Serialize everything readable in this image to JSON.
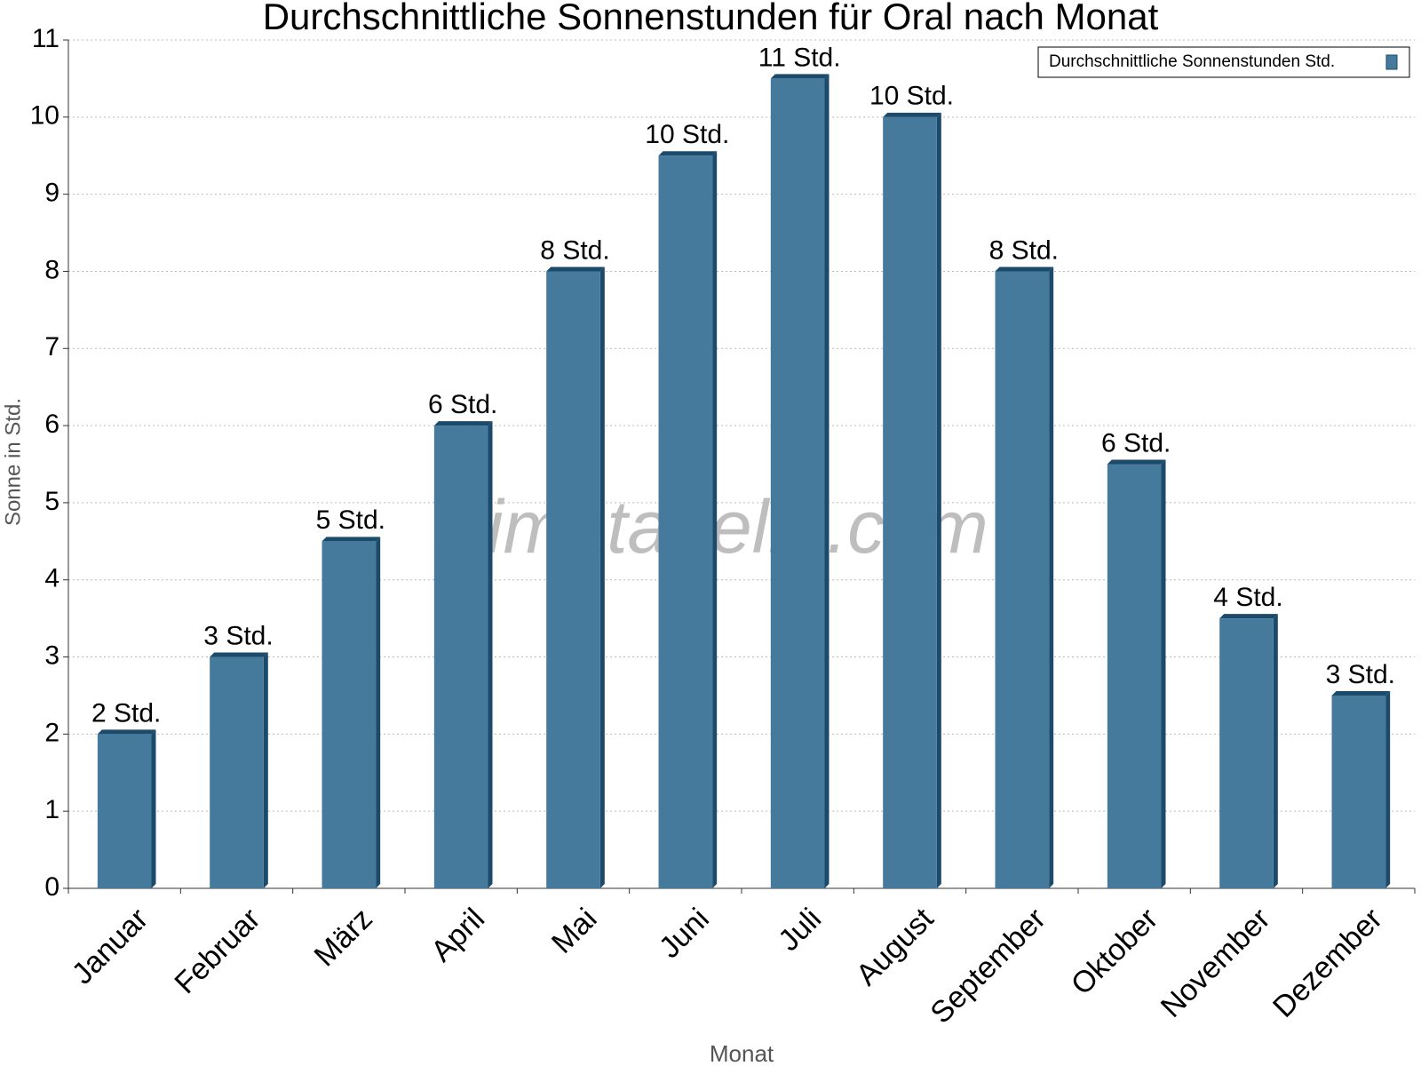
{
  "chart_data": {
    "type": "bar",
    "title": "Durchschnittliche Sonnenstunden für Oral nach Monat",
    "watermark": "klimatabelle.com",
    "x_label": "Monat",
    "y_label": "Sonne in Std.",
    "categories": [
      "Januar",
      "Februar",
      "März",
      "April",
      "Mai",
      "Juni",
      "Juli",
      "August",
      "September",
      "Oktober",
      "November",
      "Dezember"
    ],
    "series": [
      {
        "name": "Durchschnittliche Sonnenstunden Std.",
        "color": "#457a9c",
        "values": [
          2,
          3,
          4.5,
          6,
          8,
          9.5,
          10.5,
          10,
          8,
          5.5,
          3.5,
          2.5
        ],
        "value_labels": [
          "2 Std.",
          "3 Std.",
          "5 Std.",
          "6 Std.",
          "8 Std.",
          "10 Std.",
          "11 Std.",
          "10 Std.",
          "8 Std.",
          "6 Std.",
          "4 Std.",
          "3 Std."
        ]
      }
    ],
    "ylim": [
      0,
      11
    ],
    "yticks": [
      0,
      1,
      2,
      3,
      4,
      5,
      6,
      7,
      8,
      9,
      10,
      11
    ],
    "grid": true,
    "legend": "upper right"
  }
}
